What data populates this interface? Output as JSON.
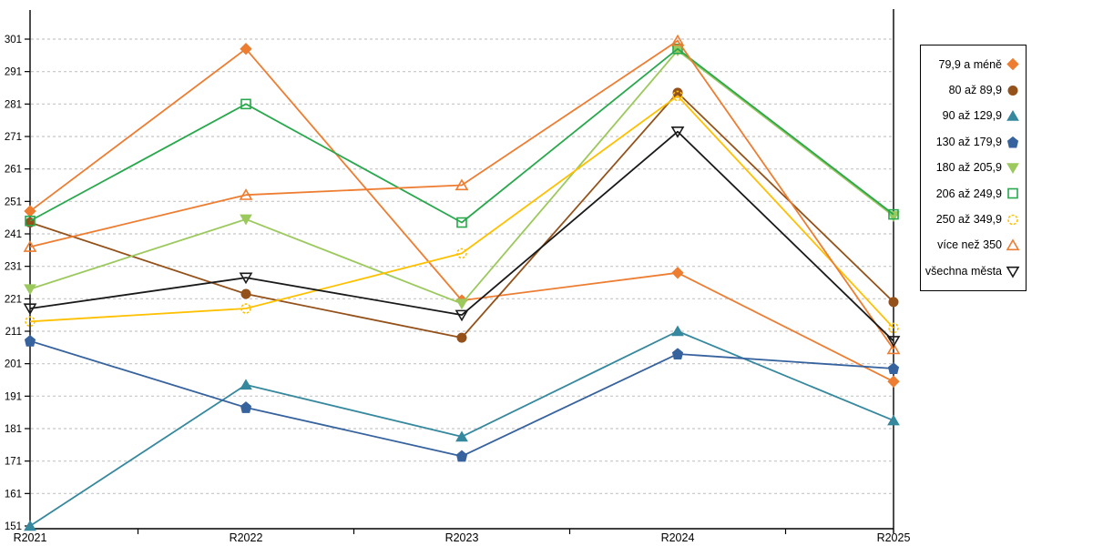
{
  "chart_data": {
    "type": "line",
    "title": "",
    "xlabel": "",
    "ylabel": "",
    "x_categories": [
      "R2021",
      "R2022",
      "R2023",
      "R2024",
      "R2025"
    ],
    "ylim": [
      151,
      301
    ],
    "ytick_step": 10,
    "grid": "horizontal-dashed",
    "gridline_color": "#c6c6c6",
    "axis_color": "#000000",
    "legend_position": "right",
    "series": [
      {
        "name": "79,9 a méně",
        "color": "#ED7D31",
        "marker": "diamond",
        "fill": "filled",
        "values": [
          248,
          298,
          220.5,
          229,
          195.5
        ]
      },
      {
        "name": "80 až 89,9",
        "color": "#94511A",
        "marker": "circle",
        "fill": "filled",
        "values": [
          244.5,
          222.5,
          209,
          284.5,
          220
        ]
      },
      {
        "name": "90 až 129,9",
        "color": "#35889E",
        "marker": "triangle-up",
        "fill": "filled",
        "values": [
          151,
          194.5,
          178.5,
          211,
          183.5
        ]
      },
      {
        "name": "130 až 179,9",
        "color": "#36629E",
        "marker": "pentagon",
        "fill": "filled",
        "values": [
          208,
          187.5,
          172.5,
          204,
          199.5
        ]
      },
      {
        "name": "180 až 205,9",
        "color": "#9CC95D",
        "marker": "triangle-down",
        "fill": "filled",
        "values": [
          224,
          245.5,
          219.5,
          297.5,
          246.5
        ]
      },
      {
        "name": "206 až 249,9",
        "color": "#28A84C",
        "marker": "square",
        "fill": "open",
        "values": [
          245,
          281,
          244.5,
          298,
          247
        ]
      },
      {
        "name": "250 až 349,9",
        "color": "#FFC000",
        "marker": "circle-dashed",
        "fill": "open",
        "values": [
          214,
          218,
          235,
          283.5,
          212
        ]
      },
      {
        "name": "více než 350",
        "color": "#ED7D31",
        "marker": "triangle-up",
        "fill": "open",
        "values": [
          237,
          253,
          256,
          300.5,
          205.5
        ]
      },
      {
        "name": "všechna města",
        "color": "#1A1A1A",
        "marker": "triangle-down",
        "fill": "open",
        "values": [
          218,
          227.5,
          216,
          272.5,
          208
        ]
      }
    ]
  }
}
